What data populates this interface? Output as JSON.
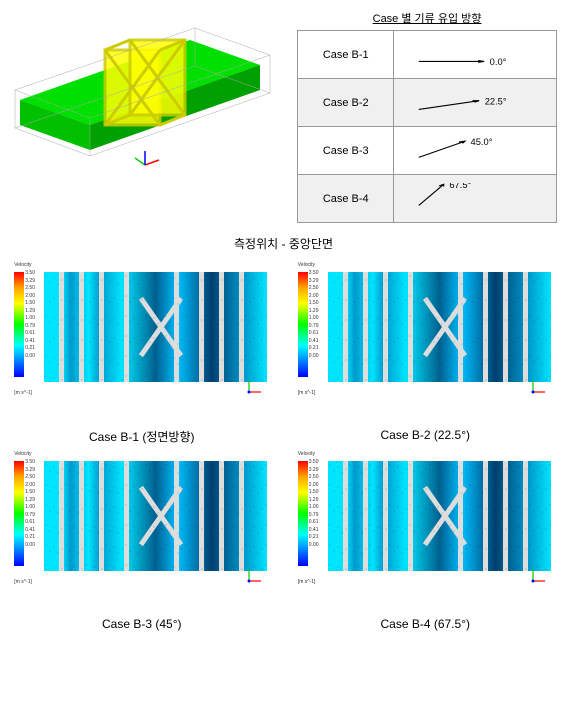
{
  "top": {
    "table_caption": "Case 별 기류 유입 방향",
    "cases": [
      {
        "label": "Case B-1",
        "angle": "0.0°",
        "deg": 0,
        "shaded": false
      },
      {
        "label": "Case B-2",
        "angle": "22.5°",
        "deg": 22.5,
        "shaded": true
      },
      {
        "label": "Case B-3",
        "angle": "45.0°",
        "deg": 45,
        "shaded": false
      },
      {
        "label": "Case B-4",
        "angle": "67.5°",
        "deg": 67.5,
        "shaded": true
      }
    ],
    "model": {
      "beam_color": "#00ff00",
      "frame_color": "#ffff00",
      "outline_color": "#808080",
      "axis_colors": {
        "x": "#ff0000",
        "y": "#00cc00",
        "z": "#0000ff"
      }
    }
  },
  "center_caption": "측정위치 - 중앙단면",
  "colorbar": {
    "title": "Velocity",
    "unit": "[m s^-1]",
    "values": [
      "3.50",
      "3.29",
      "2.50",
      "2.00",
      "1.50",
      "1.29",
      "1.00",
      "0.79",
      "0.61",
      "0.41",
      "0.21",
      "0.00"
    ],
    "gradient": [
      "#ff0000",
      "#ffa500",
      "#ffff00",
      "#00ff00",
      "#00ffff",
      "#0000ff"
    ]
  },
  "simulations": [
    {
      "caption": "Case B-1 (정면방향)"
    },
    {
      "caption": "Case B-2 (22.5°)"
    },
    {
      "caption": "Case B-3 (45°)"
    },
    {
      "caption": "Case B-4 (67.5°)"
    }
  ],
  "styling": {
    "table_border": "#999999",
    "table_shade": "#f0f0f0",
    "text_color": "#000000",
    "strut_color": "#dddddd",
    "flow_colors": {
      "high": "#00e5ff",
      "mid": "#009acd",
      "low": "#004070"
    },
    "font_sizes": {
      "table": 11,
      "caption": 12,
      "colorbar": 5
    }
  }
}
